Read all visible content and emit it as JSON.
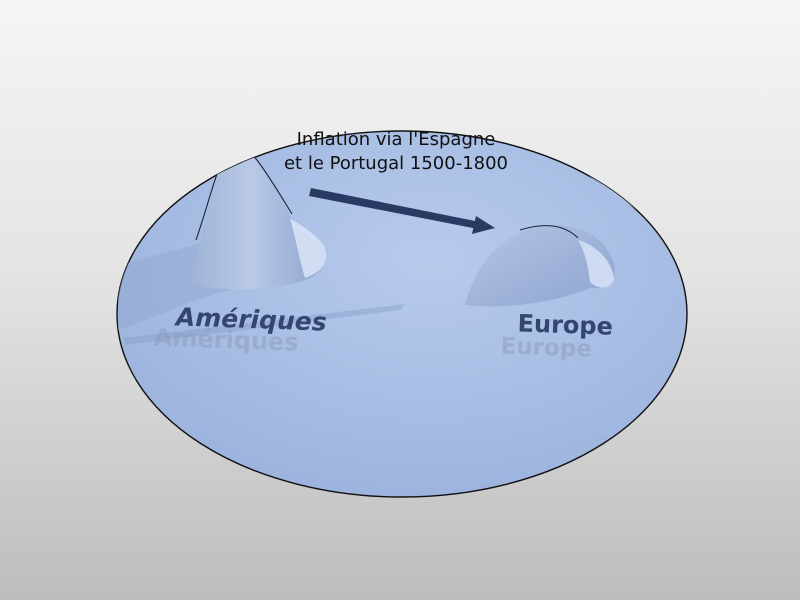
{
  "caption": {
    "line1": "Inflation via l'Espagne",
    "line2": "et le Portugal 1500-1800"
  },
  "regions": {
    "americas": "Amériques",
    "europe": "Europe"
  },
  "colors": {
    "ellipse_fill": "#a7bde3",
    "ellipse_stroke": "#111111",
    "arrow": "#2b3a62",
    "label": "#34456e"
  }
}
